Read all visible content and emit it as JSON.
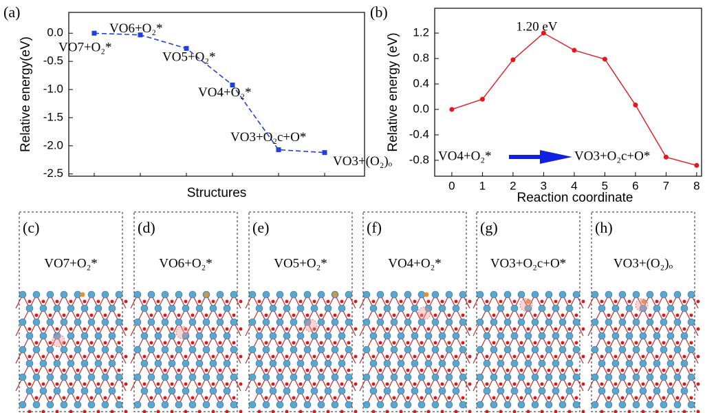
{
  "chart_data": [
    {
      "type": "line",
      "panel_label": "(a)",
      "y_label": "Relative energy(eV)",
      "x_label": "Structures",
      "categories": [
        null,
        null,
        null,
        null,
        null,
        null
      ],
      "values": [
        0.0,
        -0.03,
        -0.27,
        -0.92,
        -2.07,
        -2.12
      ],
      "point_labels": [
        "VO7+O₂*",
        "VO6+O₂*",
        "VO5+O₂*",
        "VO4+O₂*",
        "VO3+O₂c+O*",
        "VO3+(O₂)ₒ"
      ],
      "color": "#1f3fe0",
      "line_style": "dashed",
      "marker": "square",
      "ylim": [
        -2.54,
        0.37
      ],
      "yticks": [
        {
          "value": 0,
          "label": "0.0"
        },
        -0.5,
        {
          "value": -1,
          "label": "-1.0"
        },
        -1.5,
        {
          "value": -2,
          "label": "-2.0"
        },
        -2.5
      ]
    },
    {
      "type": "line",
      "panel_label": "(b)",
      "y_label": "Relative energy (eV)",
      "x_label": "Reaction coordinate",
      "x": [
        0,
        1,
        2,
        3,
        4,
        5,
        6,
        7,
        8
      ],
      "values": [
        0.0,
        0.16,
        0.78,
        1.2,
        0.93,
        0.79,
        0.07,
        -0.75,
        -0.88
      ],
      "color": "#e8141b",
      "marker": "circle",
      "peak_label": "1.20 eV",
      "arrow_from": "VO4+O₂*",
      "arrow_to": "VO3+O₂c+O*",
      "arrow_color": "#1020e0",
      "xlim": [
        -0.56,
        8.16
      ],
      "xticks": [
        0,
        1,
        2,
        3,
        4,
        5,
        6,
        7,
        8
      ],
      "ylim": [
        -1.05,
        1.59
      ],
      "yticks": [
        -0.8,
        -0.4,
        {
          "value": 0,
          "label": "0.0"
        },
        0.4,
        0.8,
        1.2
      ]
    }
  ],
  "panels": [
    {
      "label": "(c)",
      "caption": "VO7+O₂*"
    },
    {
      "label": "(d)",
      "caption": "VO6+O₂*"
    },
    {
      "label": "(e)",
      "caption": "VO5+O₂*"
    },
    {
      "label": "(f)",
      "caption": "VO4+O₂*"
    },
    {
      "label": "(g)",
      "caption": "VO3+O₂c+O*"
    },
    {
      "label": "(h)",
      "caption": "VO3+(O₂)ₒ"
    }
  ]
}
